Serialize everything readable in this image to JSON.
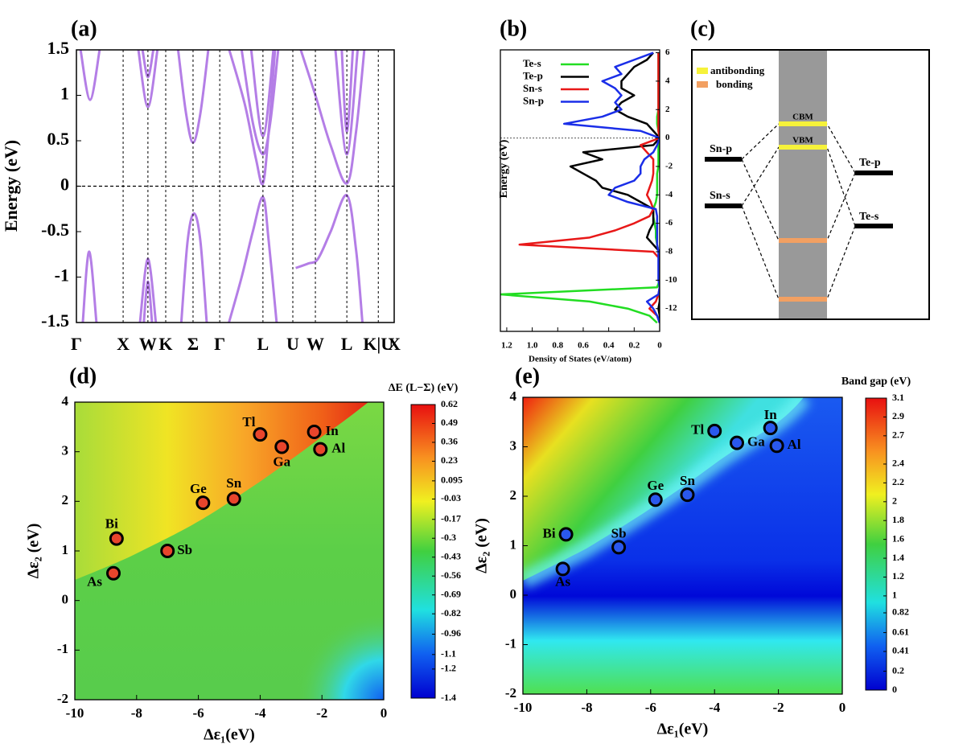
{
  "chart_data": [
    {
      "type": "bands",
      "panel_label": "(a)",
      "y_label": "Energy (eV)",
      "color": "#b47ee6",
      "xlim": [
        0,
        100
      ],
      "xticks": [
        {
          "value": 0,
          "label": "Γ"
        },
        {
          "value": 14.7,
          "label": "X"
        },
        {
          "value": 22.5,
          "label": "W"
        },
        {
          "value": 28.1,
          "label": "K"
        },
        {
          "value": 36.7,
          "label": "Σ"
        },
        {
          "value": 45.1,
          "label": "Γ"
        },
        {
          "value": 58.7,
          "label": "L"
        },
        {
          "value": 68.1,
          "label": "U"
        },
        {
          "value": 75.2,
          "label": "W"
        },
        {
          "value": 85.1,
          "label": "L"
        },
        {
          "value": 95,
          "label": "K|U"
        },
        {
          "value": 100,
          "label": "X"
        }
      ],
      "ylim": [
        -1.5,
        1.5
      ],
      "yticks": [
        -1.5,
        -1,
        -0.5,
        0,
        0.5,
        1,
        1.5
      ],
      "series": [
        {
          "x": [
            1.3,
            4.3,
            7.3
          ],
          "values": [
            1.5,
            0.95,
            1.5
          ]
        },
        {
          "x": [
            19.5,
            22.5,
            25.5
          ],
          "values": [
            1.5,
            0.87,
            1.5
          ]
        },
        {
          "x": [
            20.8,
            22.5,
            24.2
          ],
          "values": [
            1.5,
            1.2,
            1.5
          ]
        },
        {
          "x": [
            32,
            34.5,
            36.7,
            39,
            41.5
          ],
          "values": [
            1.5,
            0.8,
            0.48,
            0.8,
            1.5
          ]
        },
        {
          "x": [
            48.1,
            53,
            56.5,
            58.7,
            60.5,
            62.5
          ],
          "values": [
            1.5,
            0.9,
            0.3,
            0.03,
            0.6,
            1.5
          ]
        },
        {
          "x": [
            52,
            55.5,
            58.7,
            61,
            63.5
          ],
          "values": [
            1.5,
            0.7,
            0.35,
            0.7,
            1.5
          ]
        },
        {
          "x": [
            55,
            58.7,
            62
          ],
          "values": [
            1.5,
            0.55,
            1.5
          ]
        },
        {
          "x": [
            70.6,
            75.2,
            80,
            85.1,
            88,
            90.6
          ],
          "values": [
            1.5,
            1.0,
            0.45,
            0.03,
            0.6,
            1.5
          ]
        },
        {
          "x": [
            81.5,
            85.1,
            88.5
          ],
          "values": [
            1.5,
            0.35,
            1.5
          ]
        },
        {
          "x": [
            83.5,
            85.1,
            87
          ],
          "values": [
            1.5,
            0.6,
            1.5
          ]
        },
        {
          "x": [
            2,
            4,
            6.3
          ],
          "values": [
            -1.5,
            -0.72,
            -1.5
          ]
        },
        {
          "x": [
            20,
            22.5,
            25
          ],
          "values": [
            -1.5,
            -0.8,
            -1.5
          ]
        },
        {
          "x": [
            21.2,
            22.5,
            23.8
          ],
          "values": [
            -1.5,
            -1.05,
            -1.5
          ]
        },
        {
          "x": [
            33,
            35,
            37,
            39,
            41
          ],
          "values": [
            -1.5,
            -0.6,
            -0.3,
            -0.6,
            -1.5
          ]
        },
        {
          "x": [
            48,
            52,
            55.5,
            58.7,
            60.5,
            63
          ],
          "values": [
            -1.5,
            -1.0,
            -0.5,
            -0.12,
            -0.6,
            -1.5
          ]
        },
        {
          "x": [
            69,
            73,
            76,
            80,
            85.1,
            88,
            90
          ],
          "values": [
            -0.9,
            -0.85,
            -0.8,
            -0.5,
            -0.1,
            -0.7,
            -1.5
          ]
        }
      ]
    },
    {
      "type": "dos",
      "panel_label": "(b)",
      "x_label": "Density of States (eV/atom)",
      "y_label": "Energy (eV)",
      "xlim": [
        1.25,
        0
      ],
      "xticks": [
        {
          "value": 1.2,
          "label": "1.2"
        },
        {
          "value": 1,
          "label": "1.0"
        },
        {
          "value": 0.8,
          "label": "0.8"
        },
        {
          "value": 0.6,
          "label": "0.6"
        },
        {
          "value": 0.4,
          "label": "0.4"
        },
        {
          "value": 0.2,
          "label": "0.2"
        },
        0
      ],
      "ylim": [
        -13.6,
        6.2
      ],
      "yticks": [
        6,
        4,
        2,
        0,
        -2,
        -4,
        -6,
        -8,
        -10,
        -12
      ],
      "x": [
        6,
        5.5,
        5,
        4.5,
        4,
        3.5,
        3,
        2.5,
        2,
        1.5,
        1,
        0.5,
        0,
        -0.5,
        -1,
        -1.5,
        -2,
        -2.5,
        -3,
        -3.5,
        -4,
        -4.5,
        -5,
        -5.5,
        -6,
        -6.5,
        -7,
        -7.5,
        -8,
        -8.5,
        -9,
        -9.5,
        -10,
        -10.5,
        -11,
        -11.5,
        -12,
        -12.5,
        -13
      ],
      "series": [
        {
          "name": "Te-s",
          "color": "#22dd22",
          "values": [
            0.01,
            0.01,
            0.01,
            0.01,
            0.01,
            0.01,
            0.01,
            0.01,
            0.01,
            0.02,
            0.02,
            0.01,
            0,
            0.01,
            0.01,
            0.01,
            0.01,
            0.02,
            0.02,
            0.02,
            0.02,
            0.03,
            0.05,
            0.05,
            0.04,
            0.03,
            0.03,
            0.02,
            0.01,
            0,
            0,
            0,
            0,
            0.02,
            1.25,
            0.55,
            0.25,
            0.08,
            0.02
          ]
        },
        {
          "name": "Te-p",
          "color": "#000000",
          "values": [
            0.05,
            0.1,
            0.2,
            0.25,
            0.3,
            0.3,
            0.2,
            0.3,
            0.35,
            0.25,
            0.1,
            0.05,
            0,
            0.05,
            0.6,
            0.45,
            0.7,
            0.6,
            0.5,
            0.45,
            0.25,
            0.15,
            0.05,
            0.05,
            0.05,
            0.08,
            0.1,
            0.05,
            0,
            0,
            0,
            0,
            0,
            0,
            0,
            0,
            0.01,
            0,
            0
          ]
        },
        {
          "name": "Sn-s",
          "color": "#e81818",
          "values": [
            0.01,
            0.01,
            0.01,
            0.01,
            0.01,
            0.01,
            0.01,
            0.01,
            0.01,
            0.01,
            0.01,
            0.01,
            0,
            0.15,
            0.1,
            0.05,
            0.05,
            0.05,
            0.06,
            0.08,
            0.1,
            0.07,
            0.05,
            0.08,
            0.2,
            0.35,
            0.55,
            1.1,
            0.05,
            0,
            0,
            0,
            0,
            0,
            0.01,
            0.03,
            0.08,
            0.02,
            0
          ]
        },
        {
          "name": "Sn-p",
          "color": "#1a2ee8",
          "values": [
            0.05,
            0.2,
            0.35,
            0.3,
            0.45,
            0.35,
            0.3,
            0.35,
            0.3,
            0.45,
            0.75,
            0.15,
            0,
            0.02,
            0.05,
            0.12,
            0.15,
            0.15,
            0.2,
            0.35,
            0.4,
            0.25,
            0.03,
            0.02,
            0.02,
            0.02,
            0.02,
            0.02,
            0.01,
            0.01,
            0.01,
            0.01,
            0.01,
            0,
            0.01,
            0.1,
            0.05,
            0.02,
            0
          ]
        }
      ]
    },
    {
      "type": "diagram",
      "panel_label": "(c)",
      "legend": [
        {
          "name": "antibonding",
          "color": "#f6f23a"
        },
        {
          "name": "bonding",
          "color": "#f2a062"
        }
      ],
      "levels": {
        "cbm": "CBM",
        "vbm": "VBM",
        "sn_p": "Sn-p",
        "sn_s": "Sn-s",
        "te_p": "Te-p",
        "te_s": "Te-s"
      }
    },
    {
      "type": "heatmap",
      "panel_label": "(d)",
      "x_label": "Δε₁(eV)",
      "y_label": "Δε₂ (eV)",
      "point_color": "#e8452c",
      "xlim": [
        -10,
        0
      ],
      "xticks": [
        -10,
        -8,
        -6,
        -4,
        -2,
        0
      ],
      "ylim": [
        -2,
        4
      ],
      "yticks": [
        -2,
        -1,
        0,
        1,
        2,
        3,
        4
      ],
      "labels": [
        "Tl",
        "In",
        "Ga",
        "Al",
        "Ge",
        "Sn",
        "Bi",
        "Sb",
        "As"
      ],
      "x": [
        -4.0,
        -2.25,
        -3.3,
        -2.05,
        -5.85,
        -4.85,
        -8.65,
        -7.0,
        -8.75
      ],
      "values": [
        3.35,
        3.4,
        3.1,
        3.05,
        1.97,
        2.05,
        1.25,
        1.0,
        0.55
      ],
      "colorbar": {
        "title": "ΔE (L−Σ) (eV)",
        "lim": [
          -1.4,
          0.62
        ],
        "ticks": [
          0.62,
          0.49,
          0.36,
          0.23,
          0.095,
          -0.03,
          -0.17,
          -0.3,
          -0.43,
          -0.56,
          -0.69,
          -0.82,
          -0.96,
          -1.1,
          -1.2,
          -1.4
        ]
      }
    },
    {
      "type": "heatmap",
      "panel_label": "(e)",
      "x_label": "Δε₁(eV)",
      "y_label": "Δε₂ (eV)",
      "point_color": "#2a58ee",
      "xlim": [
        -10,
        0
      ],
      "xticks": [
        -10,
        -8,
        -6,
        -4,
        -2,
        0
      ],
      "ylim": [
        -2,
        4
      ],
      "yticks": [
        -2,
        -1,
        0,
        1,
        2,
        3,
        4
      ],
      "labels": [
        "Tl",
        "In",
        "Ga",
        "Al",
        "Ge",
        "Sn",
        "Bi",
        "Sb",
        "As"
      ],
      "x": [
        -4.0,
        -2.25,
        -3.3,
        -2.05,
        -5.85,
        -4.85,
        -8.65,
        -7.0,
        -8.75
      ],
      "values": [
        3.32,
        3.38,
        3.08,
        3.02,
        1.93,
        2.03,
        1.23,
        0.97,
        0.53
      ],
      "colorbar": {
        "title": "Band gap (eV)",
        "lim": [
          0,
          3.1
        ],
        "ticks": [
          3.1,
          2.9,
          2.7,
          2.4,
          2.2,
          2,
          1.8,
          1.6,
          1.4,
          1.2,
          1,
          0.82,
          0.61,
          0.41,
          0.2,
          0
        ]
      }
    }
  ]
}
